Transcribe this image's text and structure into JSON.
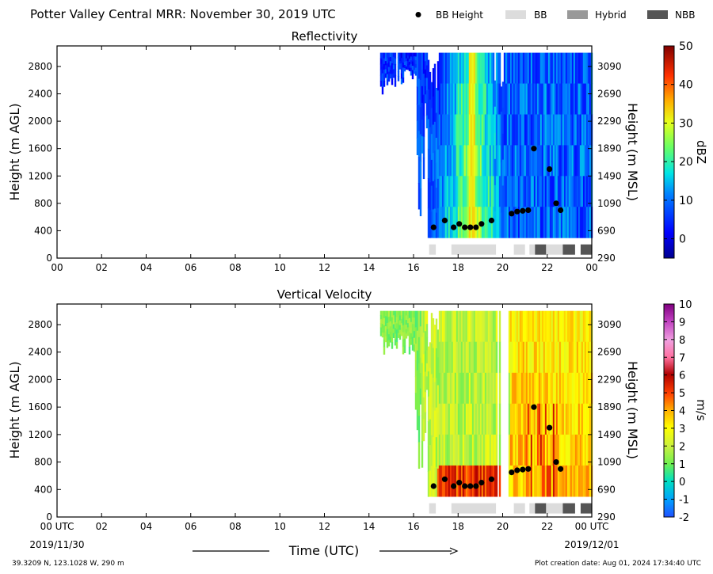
{
  "header": {
    "title": "Potter Valley Central MRR:  November 30, 2019 UTC"
  },
  "legend": {
    "items": [
      {
        "label": "BB Height",
        "kind": "dot",
        "color": "#000000"
      },
      {
        "label": "BB",
        "kind": "swatch",
        "color": "#dcdcdc"
      },
      {
        "label": "Hybrid",
        "kind": "swatch",
        "color": "#999999"
      },
      {
        "label": "NBB",
        "kind": "swatch",
        "color": "#555555"
      }
    ]
  },
  "footer": {
    "location": "39.3209 N, 123.1028 W, 290 m",
    "creation": "Plot creation date: Aug 01, 2024 17:34:40 UTC",
    "xlabel": "Time (UTC)",
    "start_date": "2019/11/30",
    "end_date": "2019/12/01",
    "start_time": "00 UTC",
    "end_time": "00 UTC"
  },
  "chart_data": [
    {
      "type": "heatmap",
      "title": "Reflectivity",
      "ylabel": "Height (m AGL)",
      "ylabel_right": "Height (m MSL)",
      "cbar_label": "dBZ",
      "cbar_ticks": [
        "0",
        "10",
        "20",
        "30",
        "40",
        "50"
      ],
      "cbar_range": [
        -5,
        50
      ],
      "xlim": [
        0,
        24
      ],
      "ylim": [
        0,
        3100
      ],
      "x_ticks": [
        "00",
        "02",
        "04",
        "06",
        "08",
        "10",
        "12",
        "14",
        "16",
        "18",
        "20",
        "22",
        "00"
      ],
      "y_ticks": [
        "0",
        "400",
        "800",
        "1200",
        "1600",
        "2000",
        "2400",
        "2800"
      ],
      "y_ticks_right": [
        "290",
        "690",
        "1090",
        "1490",
        "1890",
        "2290",
        "2690",
        "3090"
      ],
      "data_region": {
        "start_hour": 14.5,
        "end_hour": 24,
        "max_height": 3000
      },
      "bb_height": {
        "x": [
          16.9,
          17.4,
          17.8,
          18.05,
          18.3,
          18.55,
          18.8,
          19.05,
          19.5,
          20.4,
          20.65,
          20.9,
          21.15,
          21.4,
          22.1,
          22.4,
          22.6
        ],
        "y": [
          450,
          550,
          450,
          500,
          450,
          450,
          450,
          500,
          550,
          650,
          680,
          690,
          700,
          1600,
          1300,
          800,
          700
        ]
      },
      "bb_type_bar": [
        {
          "start": 16.7,
          "end": 17.0,
          "type": "BB"
        },
        {
          "start": 17.7,
          "end": 19.7,
          "type": "BB"
        },
        {
          "start": 20.5,
          "end": 21.0,
          "type": "BB"
        },
        {
          "start": 21.2,
          "end": 21.45,
          "type": "BB"
        },
        {
          "start": 21.45,
          "end": 21.95,
          "type": "NBB"
        },
        {
          "start": 21.95,
          "end": 22.7,
          "type": "BB"
        },
        {
          "start": 22.7,
          "end": 23.25,
          "type": "NBB"
        },
        {
          "start": 23.5,
          "end": 24.0,
          "type": "NBB"
        }
      ]
    },
    {
      "type": "heatmap",
      "title": "Vertical Velocity",
      "ylabel": "Height (m AGL)",
      "ylabel_right": "Height (m MSL)",
      "cbar_label": "m/s",
      "cbar_ticks": [
        "-2",
        "-1",
        "0",
        "1",
        "2",
        "3",
        "4",
        "5",
        "6",
        "7",
        "8",
        "9",
        "10"
      ],
      "cbar_range": [
        -2,
        10
      ],
      "xlim": [
        0,
        24
      ],
      "ylim": [
        0,
        3100
      ],
      "x_ticks": [
        "00",
        "02",
        "04",
        "06",
        "08",
        "10",
        "12",
        "14",
        "16",
        "18",
        "20",
        "22",
        "00"
      ],
      "y_ticks": [
        "0",
        "400",
        "800",
        "1200",
        "1600",
        "2000",
        "2400",
        "2800"
      ],
      "y_ticks_right": [
        "290",
        "690",
        "1090",
        "1490",
        "1890",
        "2290",
        "2690",
        "3090"
      ],
      "data_region": {
        "start_hour": 14.5,
        "end_hour": 24,
        "max_height": 3000
      },
      "bb_height": {
        "x": [
          16.9,
          17.4,
          17.8,
          18.05,
          18.3,
          18.55,
          18.8,
          19.05,
          19.5,
          20.4,
          20.65,
          20.9,
          21.15,
          21.4,
          22.1,
          22.4,
          22.6
        ],
        "y": [
          450,
          550,
          450,
          500,
          450,
          450,
          450,
          500,
          550,
          650,
          680,
          690,
          700,
          1600,
          1300,
          800,
          700
        ]
      },
      "bb_type_bar": [
        {
          "start": 16.7,
          "end": 17.0,
          "type": "BB"
        },
        {
          "start": 17.7,
          "end": 19.7,
          "type": "BB"
        },
        {
          "start": 20.5,
          "end": 21.0,
          "type": "BB"
        },
        {
          "start": 21.2,
          "end": 21.45,
          "type": "BB"
        },
        {
          "start": 21.45,
          "end": 21.95,
          "type": "NBB"
        },
        {
          "start": 21.95,
          "end": 22.7,
          "type": "BB"
        },
        {
          "start": 22.7,
          "end": 23.25,
          "type": "NBB"
        },
        {
          "start": 23.5,
          "end": 24.0,
          "type": "NBB"
        }
      ]
    }
  ]
}
